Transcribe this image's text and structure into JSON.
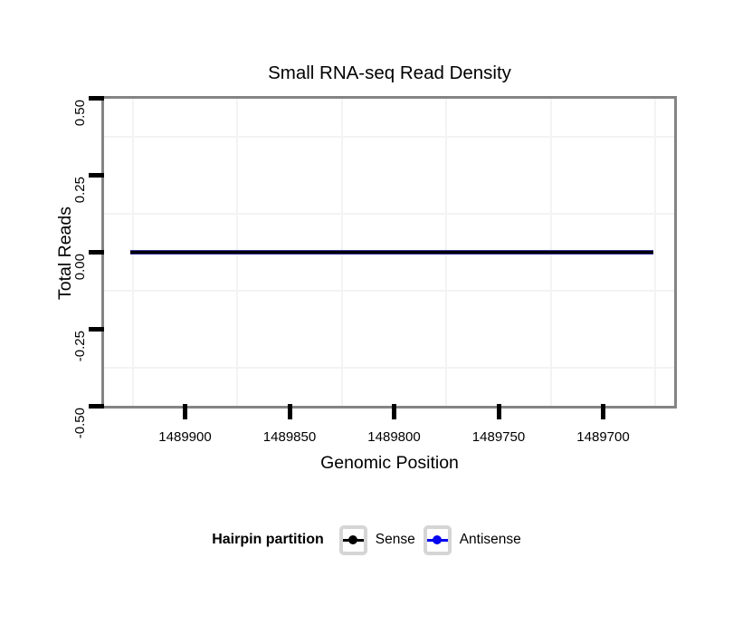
{
  "title": "Small RNA-seq Read Density",
  "axes": {
    "x": {
      "label": "Genomic Position",
      "ticks": [
        "1489900",
        "1489850",
        "1489800",
        "1489750",
        "1489700"
      ]
    },
    "y": {
      "label": "Total Reads",
      "ticks": [
        "0.50",
        "0.25",
        "0.00",
        "-0.25",
        "-0.50"
      ]
    }
  },
  "legend": {
    "title": "Hairpin partition",
    "items": [
      {
        "label": "Sense",
        "color": "#000000"
      },
      {
        "label": "Antisense",
        "color": "#0505f0"
      }
    ]
  },
  "colors": {
    "panel_border": "#848484",
    "grid_minor": "#f3f3f3",
    "tick_mark": "#000000",
    "line_core": "#000000",
    "line_edge": "#32329b",
    "legend_key_frame": "#d5d5d5"
  },
  "chart_data": {
    "type": "line",
    "title": "Small RNA-seq Read Density",
    "xlabel": "Genomic Position",
    "ylabel": "Total Reads",
    "x_axis": {
      "reversed": true,
      "ticks": [
        1489900,
        1489850,
        1489800,
        1489750,
        1489700
      ],
      "range": [
        1489939,
        1489665
      ]
    },
    "y_axis": {
      "ticks": [
        0.5,
        0.25,
        0.0,
        -0.25,
        -0.5
      ],
      "range": [
        -0.5,
        0.5
      ]
    },
    "grid": "minor-only",
    "legend_title": "Hairpin partition",
    "legend_position": "bottom",
    "series": [
      {
        "name": "Sense",
        "color": "#000000",
        "x": [
          1489926,
          1489676
        ],
        "y": [
          0,
          0
        ]
      },
      {
        "name": "Antisense",
        "color": "#0505f0",
        "x": [
          1489926,
          1489676
        ],
        "y": [
          0,
          0
        ]
      }
    ]
  }
}
